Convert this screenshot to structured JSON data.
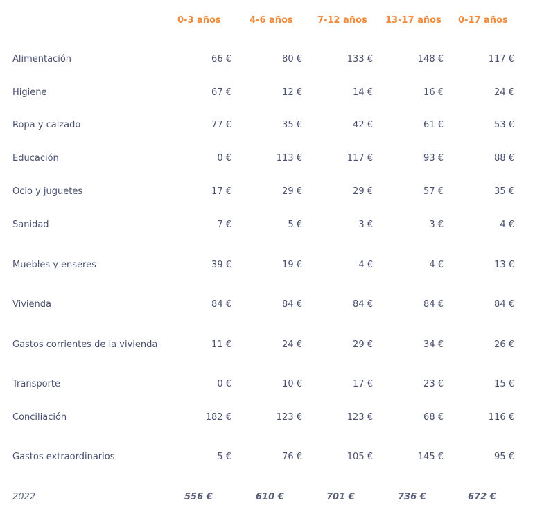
{
  "header": {
    "columns": [
      "0-3 años",
      "4-6 años",
      "7-12 años",
      "13-17 años",
      "0-17 años"
    ]
  },
  "rows": [
    {
      "label": "Alimentación",
      "values": [
        "66 €",
        "80 €",
        "133 €",
        "148 €",
        "117 €"
      ]
    },
    {
      "label": "Higiene",
      "values": [
        "67 €",
        "12 €",
        "14 €",
        "16 €",
        "24 €"
      ]
    },
    {
      "label": "Ropa y calzado",
      "values": [
        "77 €",
        "35 €",
        "42 €",
        "61 €",
        "53 €"
      ]
    },
    {
      "label": "Educación",
      "values": [
        "0 €",
        "113 €",
        "117 €",
        "93 €",
        "88 €"
      ]
    },
    {
      "label": "Ocio y juguetes",
      "values": [
        "17 €",
        "29 €",
        "29 €",
        "57 €",
        "35 €"
      ]
    },
    {
      "label": "Sanidad",
      "values": [
        "7 €",
        "5 €",
        "3 €",
        "3 €",
        "4 €"
      ]
    },
    {
      "label": "Muebles y enseres",
      "values": [
        "39 €",
        "19 €",
        "4 €",
        "4 €",
        "13 €"
      ]
    },
    {
      "label": "Vivienda",
      "values": [
        "84 €",
        "84 €",
        "84 €",
        "84 €",
        "84 €"
      ]
    },
    {
      "label": "Gastos corrientes de la vivienda",
      "values": [
        "11 €",
        "24 €",
        "29 €",
        "34 €",
        "26 €"
      ]
    },
    {
      "label": "Transporte",
      "values": [
        "0 €",
        "10 €",
        "17 €",
        "23 €",
        "15 €"
      ]
    },
    {
      "label": "Conciliación",
      "values": [
        "182 €",
        "123 €",
        "123 €",
        "68 €",
        "116 €"
      ]
    },
    {
      "label": "Gastos extraordinarios",
      "values": [
        "5 €",
        "76 €",
        "105 €",
        "145 €",
        "95 €"
      ]
    }
  ],
  "total": {
    "label": "2022",
    "values": [
      "556 €",
      "610 €",
      "701 €",
      "736 €",
      "672 €"
    ]
  }
}
